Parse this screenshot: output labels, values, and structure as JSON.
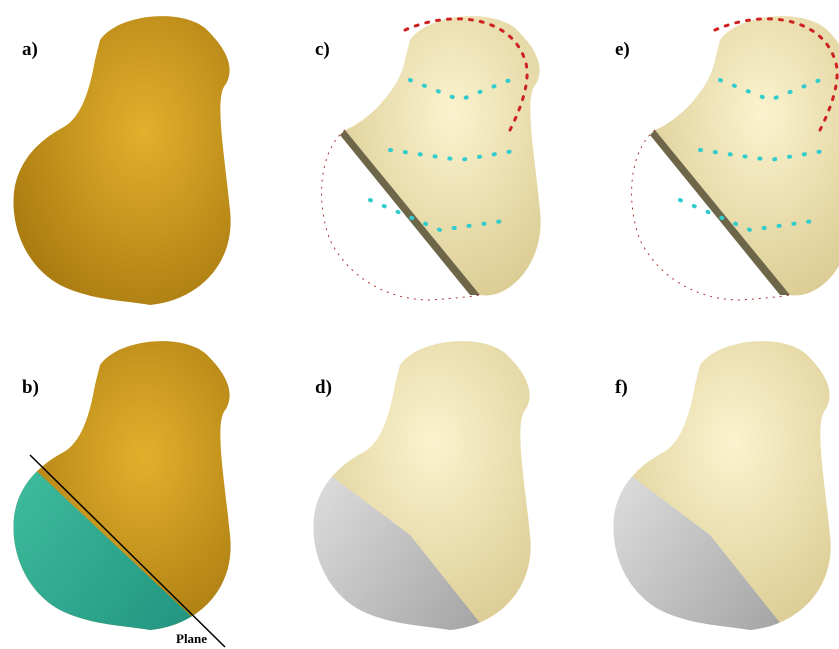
{
  "panels": [
    {
      "label": "a)"
    },
    {
      "label": "b)"
    },
    {
      "label": "c)"
    },
    {
      "label": "d)"
    },
    {
      "label": "e)"
    },
    {
      "label": "f)"
    }
  ],
  "annotation": "Plane"
}
